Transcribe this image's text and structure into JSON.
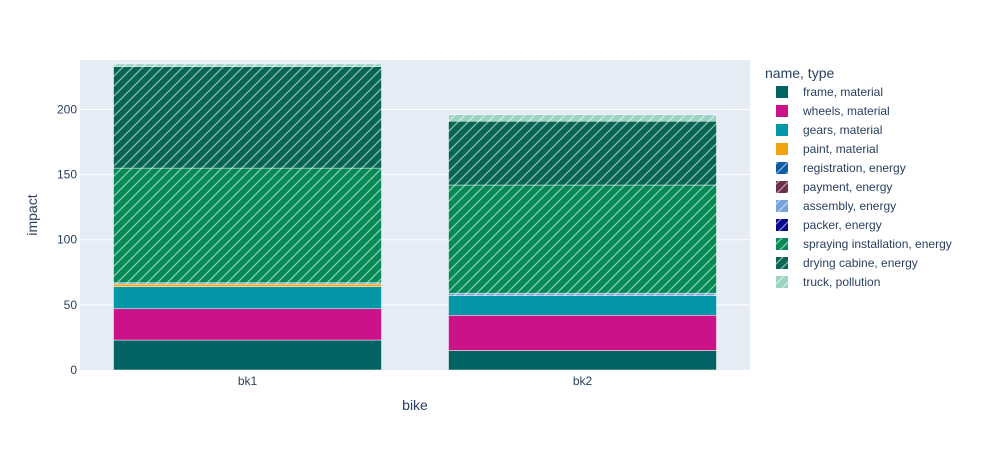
{
  "chart_data": {
    "type": "bar",
    "barmode": "stack",
    "categories": [
      "bk1",
      "bk2"
    ],
    "xlabel": "bike",
    "ylabel": "impact",
    "ylim": [
      0,
      238
    ],
    "yticks": [
      0,
      50,
      100,
      150,
      200
    ],
    "grid": true,
    "legend_title": "name, type",
    "legend_position": "right",
    "series": [
      {
        "name": "frame, material",
        "values": [
          23,
          15
        ],
        "color": "#016363",
        "pattern": "solid"
      },
      {
        "name": "wheels, material",
        "values": [
          24,
          27
        ],
        "color": "#cc1289",
        "pattern": "solid"
      },
      {
        "name": "gears, material",
        "values": [
          17,
          15
        ],
        "color": "#0396a6",
        "pattern": "solid"
      },
      {
        "name": "paint, material",
        "values": [
          2,
          0
        ],
        "color": "#f2a30f",
        "pattern": "solid"
      },
      {
        "name": "registration, energy",
        "values": [
          0,
          0
        ],
        "color": "#0c5aa6",
        "pattern": "hatch"
      },
      {
        "name": "payment, energy",
        "values": [
          0,
          0
        ],
        "color": "#6e2f4b",
        "pattern": "hatch"
      },
      {
        "name": "assembly, energy",
        "values": [
          1,
          2
        ],
        "color": "#74a2d9",
        "pattern": "hatch"
      },
      {
        "name": "packer, energy",
        "values": [
          0,
          0
        ],
        "color": "#05058c",
        "pattern": "hatch"
      },
      {
        "name": "spraying installation, energy",
        "values": [
          88,
          83
        ],
        "color": "#048a57",
        "pattern": "hatch"
      },
      {
        "name": "drying cabine, energy",
        "values": [
          78,
          49
        ],
        "color": "#066653",
        "pattern": "hatch"
      },
      {
        "name": "truck, pollution",
        "values": [
          2,
          5
        ],
        "color": "#9bd4c4",
        "pattern": "hatch"
      }
    ]
  }
}
